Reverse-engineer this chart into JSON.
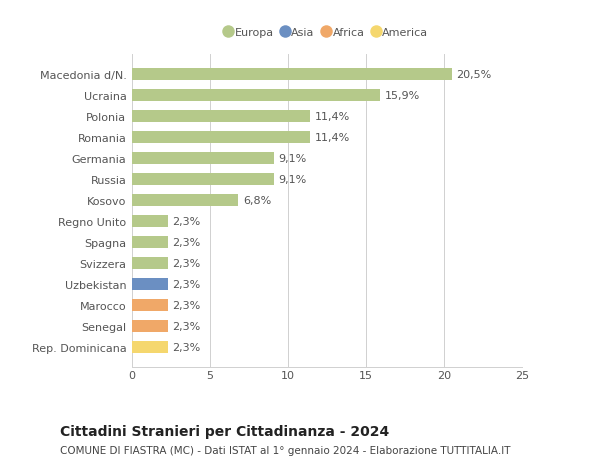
{
  "categories": [
    "Rep. Dominicana",
    "Senegal",
    "Marocco",
    "Uzbekistan",
    "Svizzera",
    "Spagna",
    "Regno Unito",
    "Kosovo",
    "Russia",
    "Germania",
    "Romania",
    "Polonia",
    "Ucraina",
    "Macedonia d/N."
  ],
  "values": [
    2.3,
    2.3,
    2.3,
    2.3,
    2.3,
    2.3,
    2.3,
    6.8,
    9.1,
    9.1,
    11.4,
    11.4,
    15.9,
    20.5
  ],
  "labels": [
    "2,3%",
    "2,3%",
    "2,3%",
    "2,3%",
    "2,3%",
    "2,3%",
    "2,3%",
    "6,8%",
    "9,1%",
    "9,1%",
    "11,4%",
    "11,4%",
    "15,9%",
    "20,5%"
  ],
  "colors": [
    "#f5d76e",
    "#f0a868",
    "#f0a868",
    "#6b8fc2",
    "#b5c98a",
    "#b5c98a",
    "#b5c98a",
    "#b5c98a",
    "#b5c98a",
    "#b5c98a",
    "#b5c98a",
    "#b5c98a",
    "#b5c98a",
    "#b5c98a"
  ],
  "legend_labels": [
    "Europa",
    "Asia",
    "Africa",
    "America"
  ],
  "legend_colors": [
    "#b5c98a",
    "#6b8fc2",
    "#f0a868",
    "#f5d76e"
  ],
  "xlim": [
    0,
    25
  ],
  "xticks": [
    0,
    5,
    10,
    15,
    20,
    25
  ],
  "title": "Cittadini Stranieri per Cittadinanza - 2024",
  "subtitle": "COMUNE DI FIASTRA (MC) - Dati ISTAT al 1° gennaio 2024 - Elaborazione TUTTITALIA.IT",
  "background_color": "#ffffff",
  "grid_color": "#d0d0d0",
  "bar_height": 0.55,
  "label_fontsize": 8,
  "tick_fontsize": 8,
  "title_fontsize": 10,
  "subtitle_fontsize": 7.5
}
